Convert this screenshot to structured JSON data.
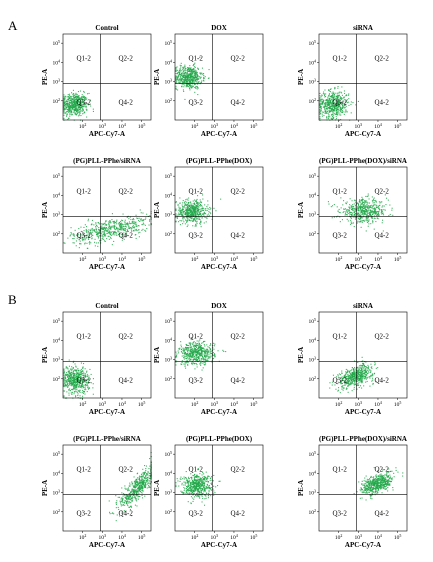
{
  "sections": [
    {
      "letter": "A",
      "rows": [
        [
          "Control",
          "DOX",
          "siRNA"
        ],
        [
          "(PG)PLL-PPhe/siRNA",
          "(PG)PLL-PPhe(DOX)",
          "(PG)PLL-PPhe(DOX)/siRNA"
        ]
      ]
    },
    {
      "letter": "B",
      "rows": [
        [
          "Control",
          "DOX",
          "siRNA"
        ],
        [
          "(PG)PLL-PPhe/siRNA",
          "(PG)PLL-PPhe(DOX)",
          "(PG)PLL-PPhe(DOX)/siRNA"
        ]
      ]
    }
  ],
  "axes": {
    "x_label": "APC-Cy7-A",
    "y_label": "PE-A",
    "tick_base": "10",
    "x_tick_exponents": [
      "2",
      "3",
      "4",
      "5"
    ],
    "y_tick_exponents": [
      "2",
      "3",
      "4",
      "5"
    ]
  },
  "quadrants": [
    "Q1-2",
    "Q2-2",
    "Q3-2",
    "Q4-2"
  ],
  "colors": {
    "points": "#22a84a",
    "gate_lines": "#000000"
  },
  "chart_data": [
    {
      "type": "scatter",
      "section": "A",
      "title": "Control",
      "xlabel": "APC-Cy7-A",
      "ylabel": "PE-A",
      "xscale": "log",
      "yscale": "log",
      "xlim": [
        10,
        300000
      ],
      "ylim": [
        10,
        300000
      ],
      "gate": {
        "x": 800,
        "y": 800
      },
      "populations": [
        {
          "center": [
            35,
            65
          ],
          "spread_decades": [
            0.35,
            0.3
          ],
          "weight": 1.0
        }
      ]
    },
    {
      "type": "scatter",
      "section": "A",
      "title": "DOX",
      "xlabel": "APC-Cy7-A",
      "ylabel": "PE-A",
      "xscale": "log",
      "yscale": "log",
      "xlim": [
        10,
        300000
      ],
      "ylim": [
        10,
        300000
      ],
      "gate": {
        "x": 800,
        "y": 800
      },
      "populations": [
        {
          "center": [
            45,
            1800
          ],
          "spread_decades": [
            0.35,
            0.3
          ],
          "weight": 1.0
        }
      ]
    },
    {
      "type": "scatter",
      "section": "A",
      "title": "siRNA",
      "xlabel": "APC-Cy7-A",
      "ylabel": "PE-A",
      "xscale": "log",
      "yscale": "log",
      "xlim": [
        10,
        300000
      ],
      "ylim": [
        10,
        300000
      ],
      "gate": {
        "x": 800,
        "y": 800
      },
      "populations": [
        {
          "center": [
            50,
            70
          ],
          "spread_decades": [
            0.4,
            0.35
          ],
          "weight": 1.0
        }
      ]
    },
    {
      "type": "scatter",
      "section": "A",
      "title": "(PG)PLL-PPhe/siRNA",
      "xlabel": "APC-Cy7-A",
      "ylabel": "PE-A",
      "xscale": "log",
      "yscale": "log",
      "xlim": [
        10,
        300000
      ],
      "ylim": [
        10,
        300000
      ],
      "gate": {
        "x": 800,
        "y": 800
      },
      "populations": [
        {
          "center": [
            2500,
            180
          ],
          "spread_decades": [
            1.0,
            0.35
          ],
          "weight": 1.0,
          "correlation": 0.6
        }
      ]
    },
    {
      "type": "scatter",
      "section": "A",
      "title": "(PG)PLL-PPhe(DOX)",
      "xlabel": "APC-Cy7-A",
      "ylabel": "PE-A",
      "xscale": "log",
      "yscale": "log",
      "xlim": [
        10,
        300000
      ],
      "ylim": [
        10,
        300000
      ],
      "gate": {
        "x": 800,
        "y": 800
      },
      "populations": [
        {
          "center": [
            70,
            1500
          ],
          "spread_decades": [
            0.4,
            0.3
          ],
          "weight": 1.0
        }
      ]
    },
    {
      "type": "scatter",
      "section": "A",
      "title": "(PG)PLL-PPhe(DOX)/siRNA",
      "xlabel": "APC-Cy7-A",
      "ylabel": "PE-A",
      "xscale": "log",
      "yscale": "log",
      "xlim": [
        10,
        300000
      ],
      "ylim": [
        10,
        300000
      ],
      "gate": {
        "x": 800,
        "y": 800
      },
      "populations": [
        {
          "center": [
            1800,
            1600
          ],
          "spread_decades": [
            0.6,
            0.3
          ],
          "weight": 1.0
        }
      ]
    },
    {
      "type": "scatter",
      "section": "B",
      "title": "Control",
      "xlabel": "APC-Cy7-A",
      "ylabel": "PE-A",
      "xscale": "log",
      "yscale": "log",
      "xlim": [
        10,
        300000
      ],
      "ylim": [
        10,
        300000
      ],
      "gate": {
        "x": 800,
        "y": 800
      },
      "populations": [
        {
          "center": [
            40,
            90
          ],
          "spread_decades": [
            0.35,
            0.35
          ],
          "weight": 1.0
        }
      ]
    },
    {
      "type": "scatter",
      "section": "B",
      "title": "DOX",
      "xlabel": "APC-Cy7-A",
      "ylabel": "PE-A",
      "xscale": "log",
      "yscale": "log",
      "xlim": [
        10,
        300000
      ],
      "ylim": [
        10,
        300000
      ],
      "gate": {
        "x": 800,
        "y": 800
      },
      "populations": [
        {
          "center": [
            120,
            2200
          ],
          "spread_decades": [
            0.45,
            0.3
          ],
          "weight": 1.0
        }
      ]
    },
    {
      "type": "scatter",
      "section": "B",
      "title": "siRNA",
      "xlabel": "APC-Cy7-A",
      "ylabel": "PE-A",
      "xscale": "log",
      "yscale": "log",
      "xlim": [
        10,
        300000
      ],
      "ylim": [
        10,
        300000
      ],
      "gate": {
        "x": 800,
        "y": 800
      },
      "populations": [
        {
          "center": [
            700,
            150
          ],
          "spread_decades": [
            0.45,
            0.3
          ],
          "weight": 1.0,
          "correlation": 0.5
        }
      ]
    },
    {
      "type": "scatter",
      "section": "B",
      "title": "(PG)PLL-PPhe/siRNA",
      "xlabel": "APC-Cy7-A",
      "ylabel": "PE-A",
      "xscale": "log",
      "yscale": "log",
      "xlim": [
        10,
        300000
      ],
      "ylim": [
        10,
        300000
      ],
      "gate": {
        "x": 800,
        "y": 800
      },
      "populations": [
        {
          "center": [
            60000,
            2000
          ],
          "spread_decades": [
            0.45,
            0.55
          ],
          "weight": 1.0,
          "correlation": 0.8
        }
      ]
    },
    {
      "type": "scatter",
      "section": "B",
      "title": "(PG)PLL-PPhe(DOX)",
      "xlabel": "APC-Cy7-A",
      "ylabel": "PE-A",
      "xscale": "log",
      "yscale": "log",
      "xlim": [
        10,
        300000
      ],
      "ylim": [
        10,
        300000
      ],
      "gate": {
        "x": 800,
        "y": 800
      },
      "populations": [
        {
          "center": [
            120,
            2500
          ],
          "spread_decades": [
            0.4,
            0.3
          ],
          "weight": 1.0
        }
      ]
    },
    {
      "type": "scatter",
      "section": "B",
      "title": "(PG)PLL-PPhe(DOX)/siRNA",
      "xlabel": "APC-Cy7-A",
      "ylabel": "PE-A",
      "xscale": "log",
      "yscale": "log",
      "xlim": [
        10,
        300000
      ],
      "ylim": [
        10,
        300000
      ],
      "gate": {
        "x": 800,
        "y": 800
      },
      "populations": [
        {
          "center": [
            9000,
            3000
          ],
          "spread_decades": [
            0.4,
            0.28
          ],
          "weight": 1.0,
          "correlation": 0.5
        }
      ]
    }
  ]
}
